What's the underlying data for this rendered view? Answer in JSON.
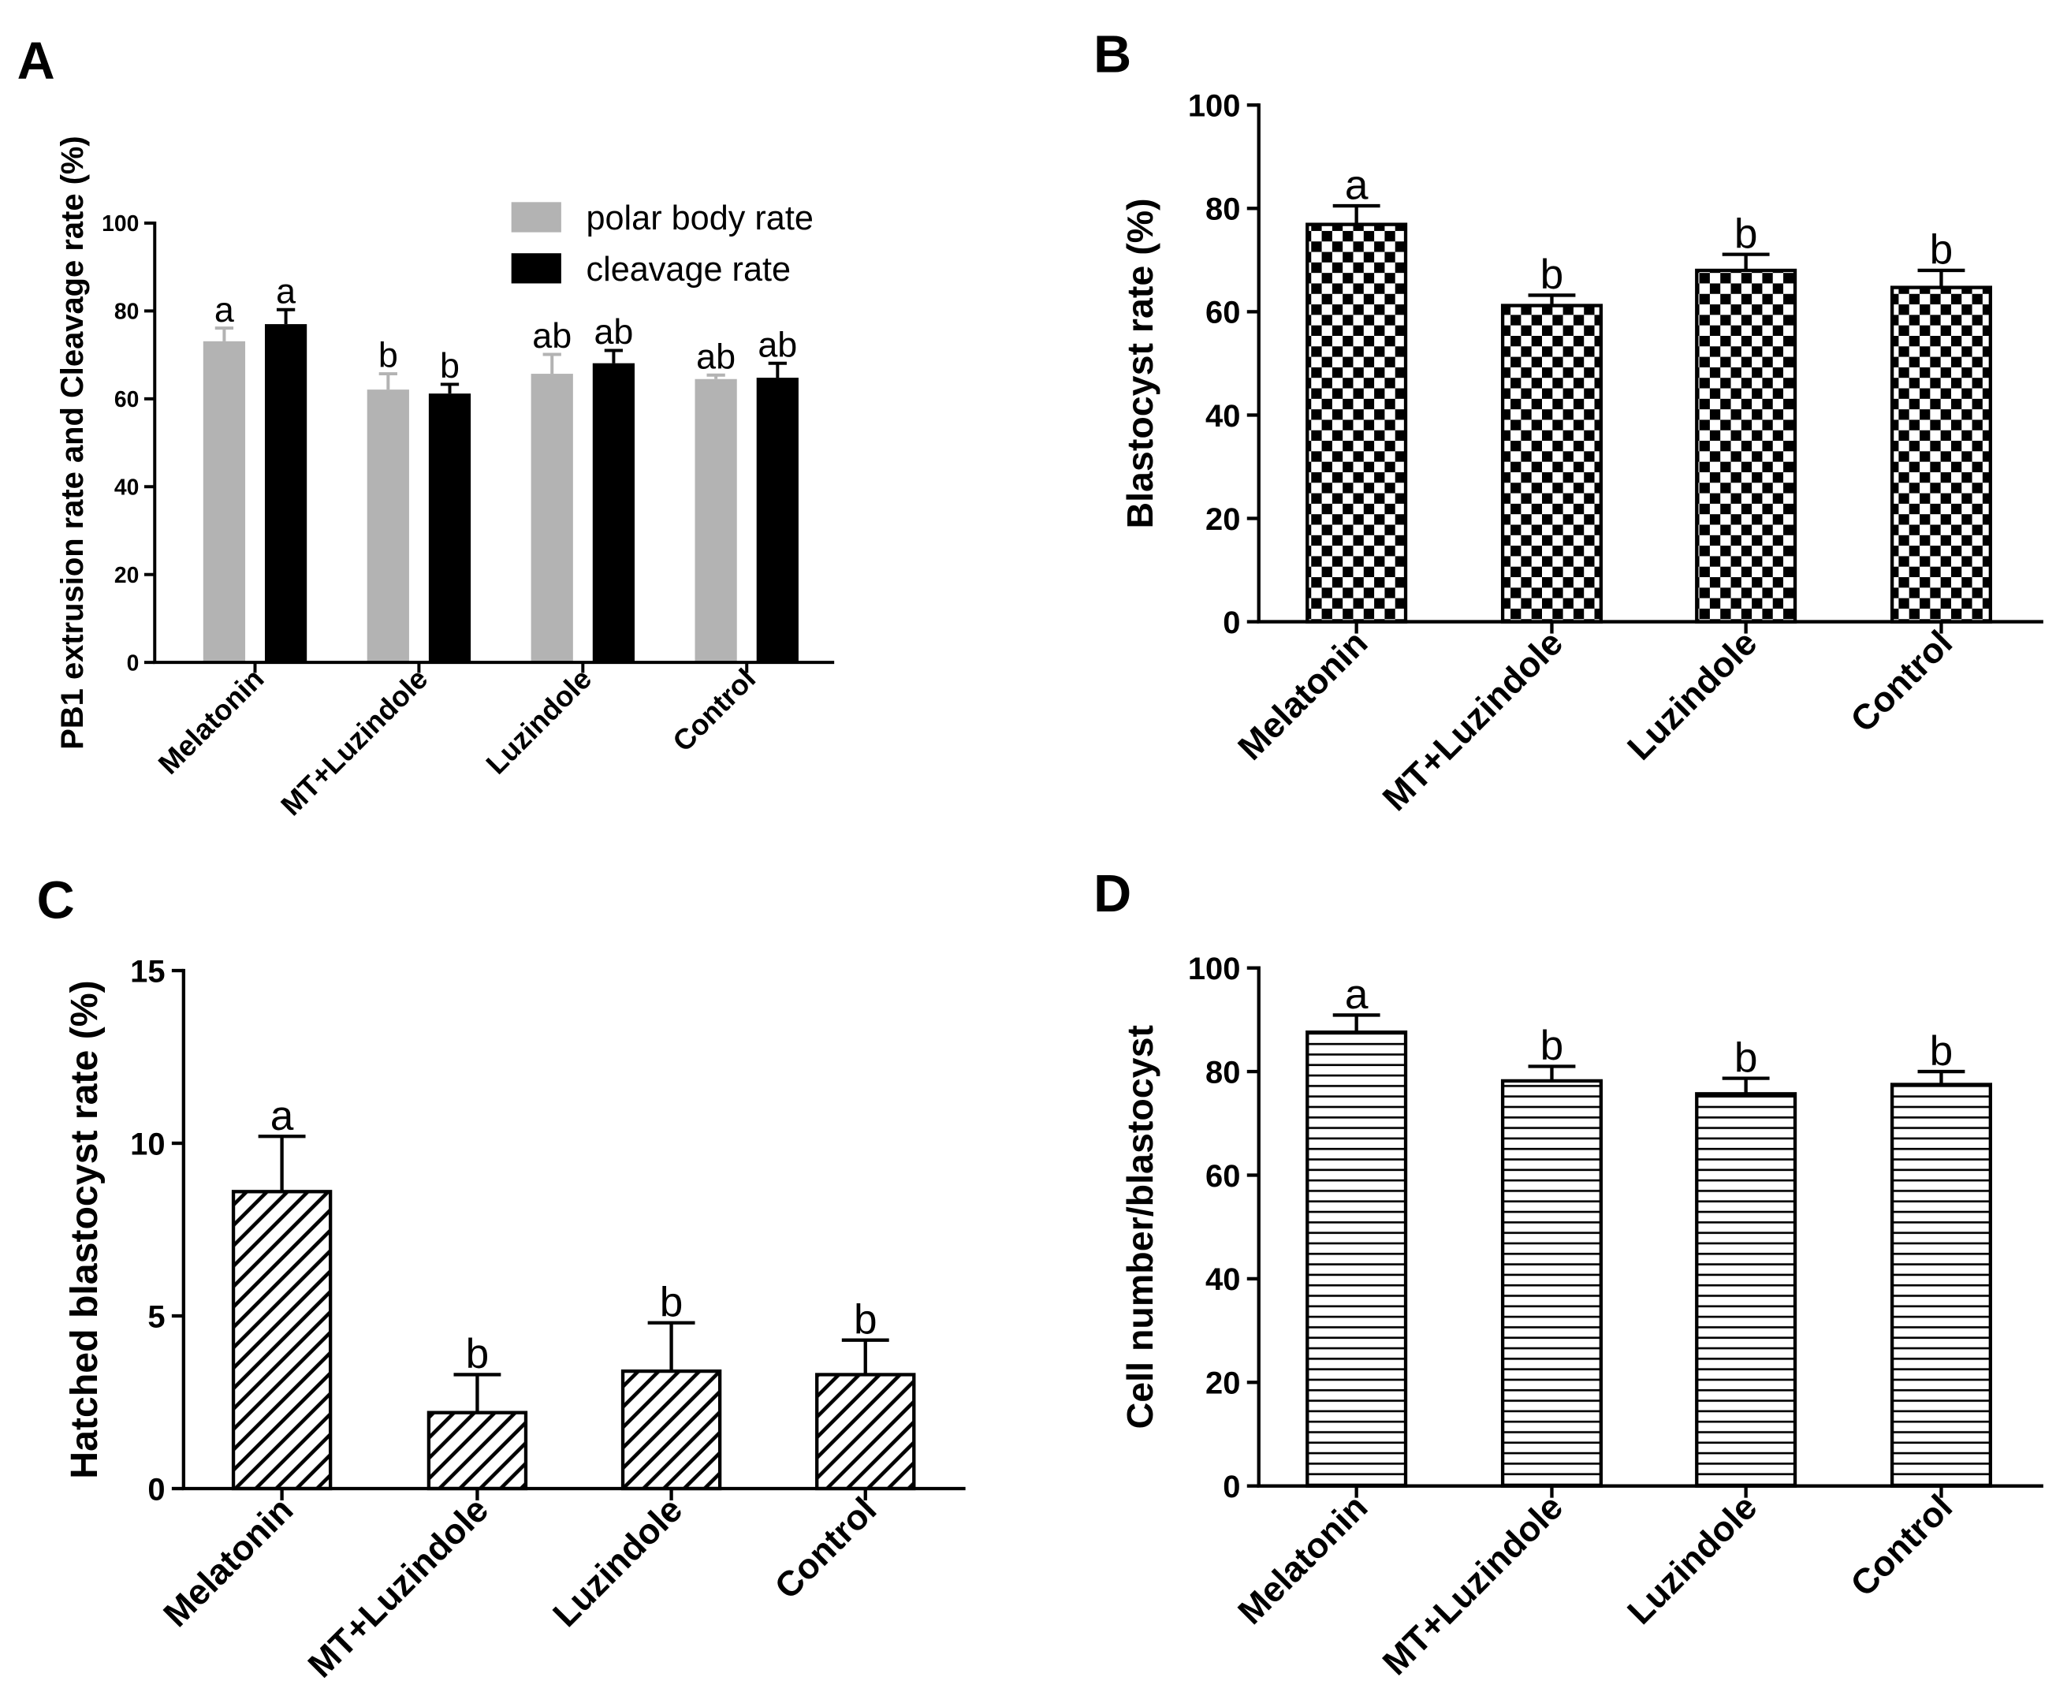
{
  "chart_data": [
    {
      "panel": "A",
      "type": "bar",
      "title": "",
      "xlabel": "",
      "ylabel": "PB1 extrusion rate and Cleavage rate (%)",
      "ylim": [
        0,
        100
      ],
      "yticks": [
        0,
        20,
        40,
        60,
        80,
        100
      ],
      "legend": "top-right",
      "categories": [
        "Melatonin",
        "MT+Luzindole",
        "Luzindole",
        "Control"
      ],
      "series": [
        {
          "name": "polar body rate",
          "color": "#b3b3b3",
          "values": [
            73.1,
            62.1,
            65.7,
            64.5
          ],
          "error": [
            3.0,
            3.6,
            4.4,
            0.9
          ],
          "labels": [
            "a",
            "b",
            "ab",
            "ab"
          ]
        },
        {
          "name": "cleavage rate",
          "color": "#000000",
          "values": [
            77.0,
            61.2,
            68.1,
            64.8
          ],
          "error": [
            3.3,
            2.1,
            2.9,
            3.3
          ],
          "labels": [
            "a",
            "b",
            "ab",
            "ab"
          ]
        }
      ]
    },
    {
      "panel": "B",
      "type": "bar",
      "title": "",
      "xlabel": "",
      "ylabel": "Blastocyst rate (%)",
      "ylim": [
        0,
        100
      ],
      "yticks": [
        0,
        20,
        40,
        60,
        80,
        100
      ],
      "categories": [
        "Melatonin",
        "MT+Luzindole",
        "Luzindole",
        "Control"
      ],
      "series": [
        {
          "color": "#000000",
          "values": [
            76.9,
            61.2,
            68.0,
            64.7
          ],
          "error": [
            3.6,
            2.0,
            3.1,
            3.3
          ],
          "labels": [
            "a",
            "b",
            "b",
            "b"
          ]
        }
      ]
    },
    {
      "panel": "C",
      "type": "bar",
      "title": "",
      "xlabel": "",
      "ylabel": "Hatched blastocyst rate (%)",
      "ylim": [
        0,
        15
      ],
      "yticks": [
        0,
        5,
        10,
        15
      ],
      "categories": [
        "Melatonin",
        "MT+Luzindole",
        "Luzindole",
        "Control"
      ],
      "series": [
        {
          "color": "#000000",
          "values": [
            8.6,
            2.2,
            3.4,
            3.3
          ],
          "error": [
            1.6,
            1.1,
            1.4,
            1.0
          ],
          "labels": [
            "a",
            "b",
            "b",
            "b"
          ]
        }
      ]
    },
    {
      "panel": "D",
      "type": "bar",
      "title": "",
      "xlabel": "",
      "ylabel": "Cell number/blastocyst",
      "ylim": [
        0,
        100
      ],
      "yticks": [
        0,
        20,
        40,
        60,
        80,
        100
      ],
      "categories": [
        "Melatonin",
        "MT+Luzindole",
        "Luzindole",
        "Control"
      ],
      "series": [
        {
          "color": "#000000",
          "values": [
            87.6,
            78.2,
            75.7,
            77.5
          ],
          "error": [
            3.3,
            2.8,
            3.0,
            2.5
          ],
          "labels": [
            "a",
            "b",
            "b",
            "b"
          ]
        }
      ]
    }
  ]
}
